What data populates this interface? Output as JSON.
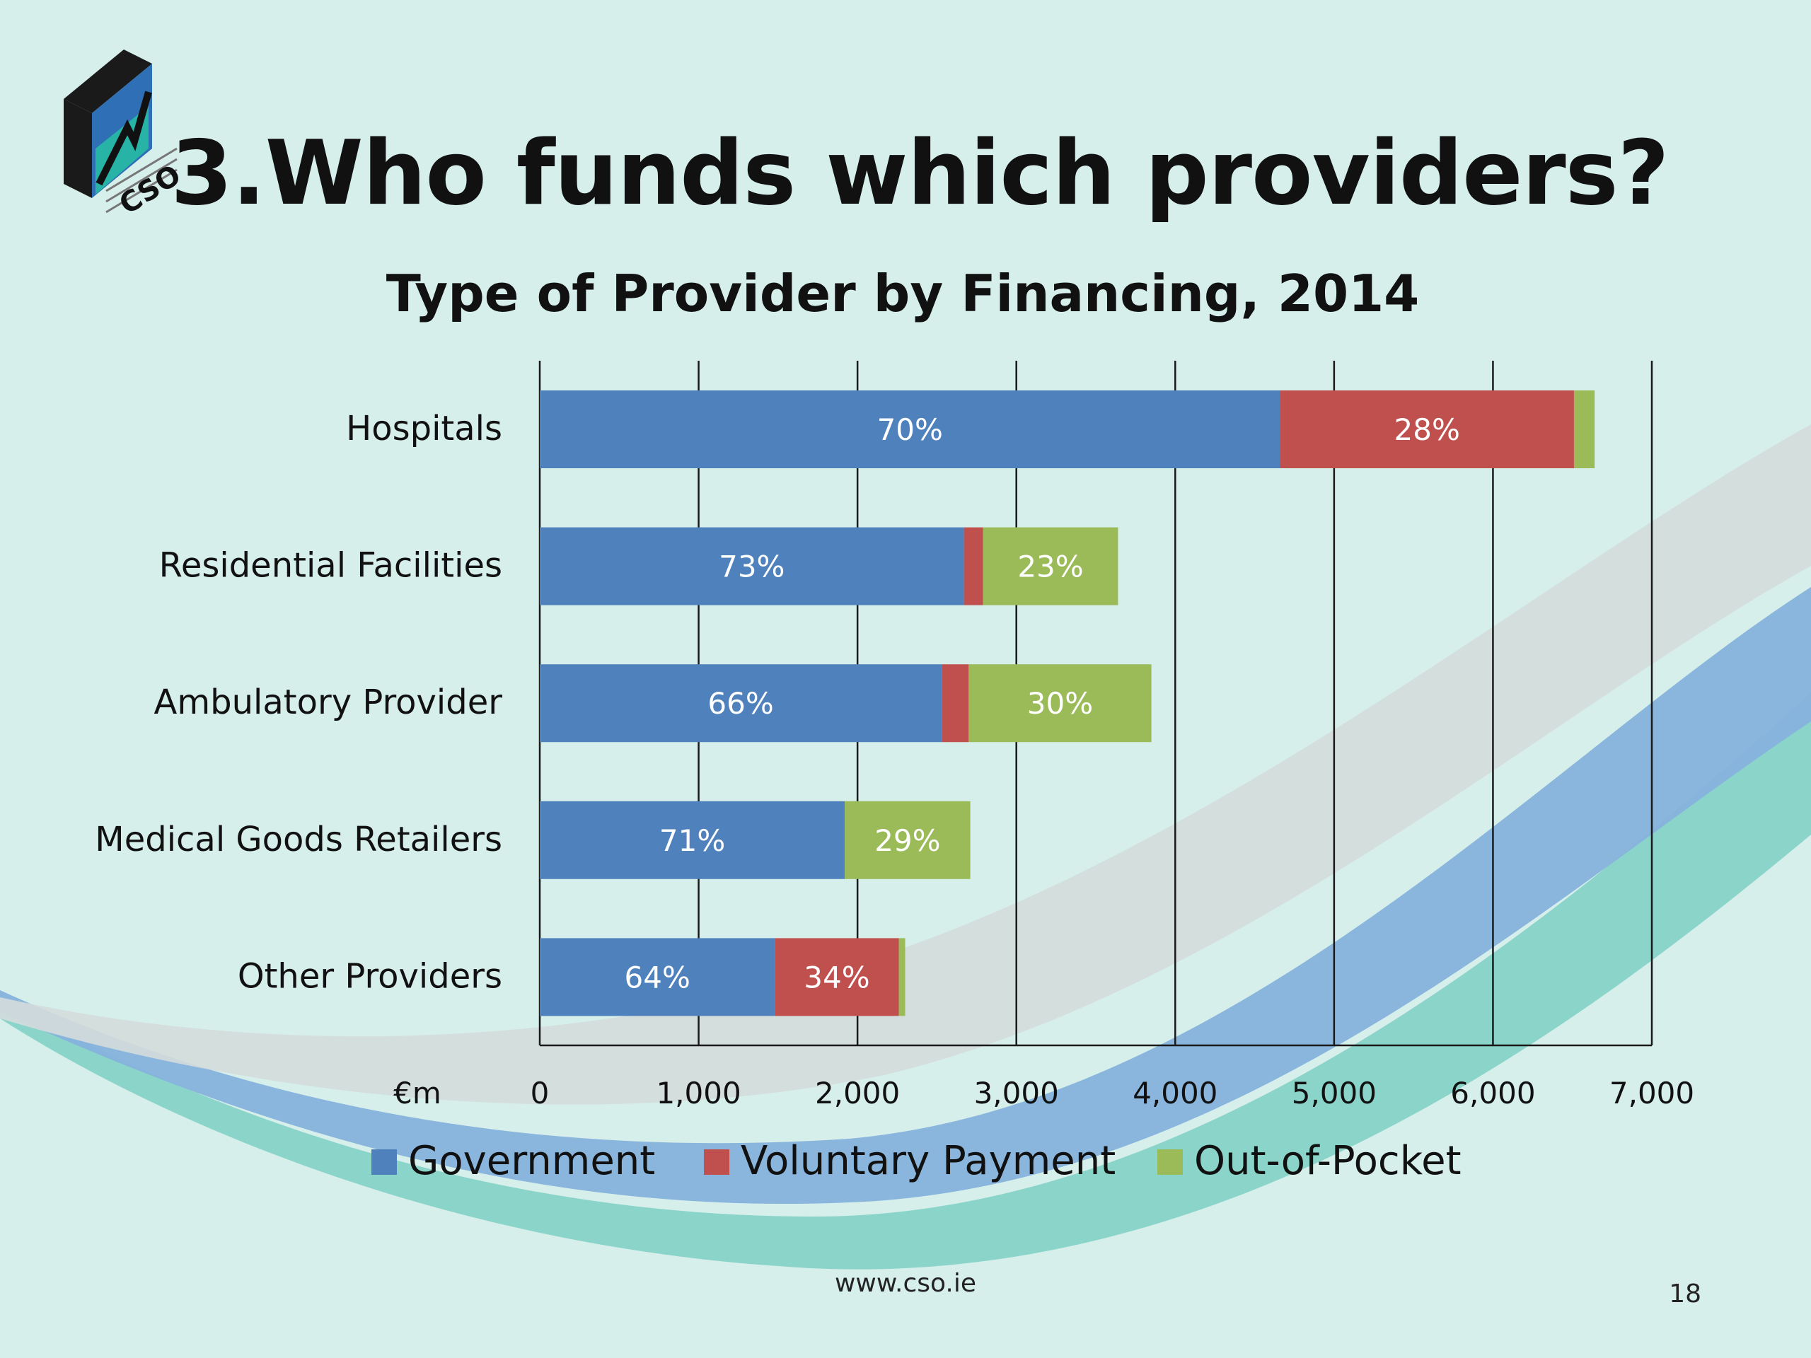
{
  "slide": {
    "title": "3.Who funds which providers?",
    "logo_text": "CSO",
    "footer_url": "www.cso.ie",
    "page_number": "18"
  },
  "chart_data": {
    "type": "bar",
    "orientation": "horizontal",
    "stacked": true,
    "title": "Type of Provider by Financing, 2014",
    "xlabel": "€m",
    "xlim": [
      0,
      7000
    ],
    "xticks": [
      "0",
      "1,000",
      "2,000",
      "3,000",
      "4,000",
      "5,000",
      "6,000",
      "7,000"
    ],
    "grid": "vertical",
    "legend_position": "bottom",
    "categories": [
      "Hospitals",
      "Residential Facilities",
      "Ambulatory Provider",
      "Medical Goods Retailers",
      "Other Providers"
    ],
    "series": [
      {
        "name": "Government",
        "color": "#4f81bd",
        "values": [
          4660,
          2670,
          2530,
          1920,
          1480
        ],
        "labels": [
          "70%",
          "73%",
          "66%",
          "71%",
          "64%"
        ]
      },
      {
        "name": "Voluntary Payment",
        "color": "#c0504d",
        "values": [
          1850,
          120,
          170,
          0,
          780
        ],
        "labels": [
          "28%",
          "",
          "",
          "",
          "34%"
        ]
      },
      {
        "name": "Out-of-Pocket",
        "color": "#9bbb59",
        "values": [
          130,
          850,
          1150,
          790,
          40
        ],
        "labels": [
          "",
          "23%",
          "30%",
          "29%",
          ""
        ]
      }
    ]
  }
}
